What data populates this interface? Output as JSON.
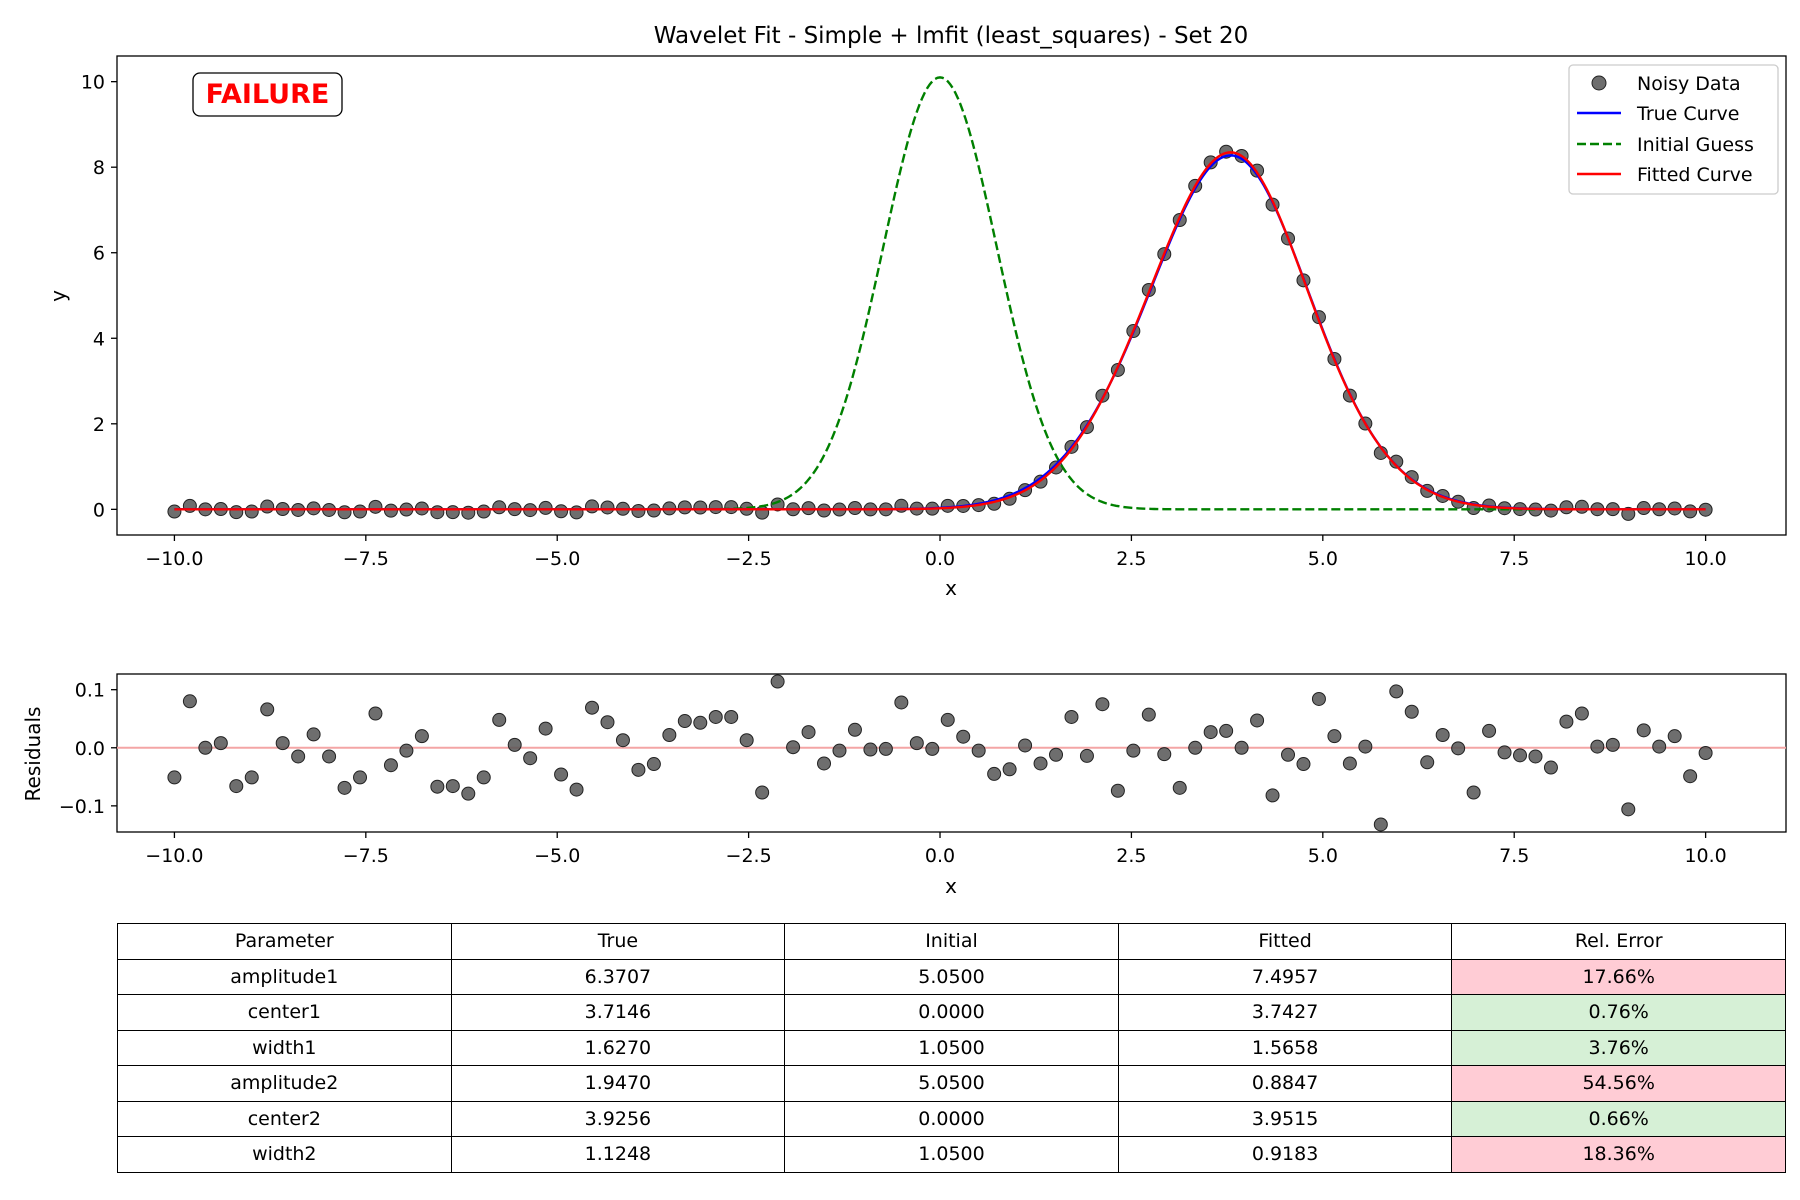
{
  "title": "Wavelet Fit - Simple + lmfit (least_squares) - Set 20",
  "status": {
    "text": "FAILURE",
    "color": "#ff0000"
  },
  "colors": {
    "noisy_data": "#555555",
    "true_curve": "#0000ff",
    "initial_guess": "#008000",
    "fitted_curve": "#ff0000",
    "residual_zero_line": "#f4a5a5",
    "error_bad": "#ffccd5",
    "error_good": "#d6f0d6"
  },
  "chart_data": [
    {
      "type": "line",
      "name": "main-fit",
      "xlabel": "x",
      "ylabel": "y",
      "xlim": [
        -10.75,
        11.05
      ],
      "ylim": [
        -0.6,
        10.6
      ],
      "xticks": [
        -10,
        -7.5,
        -5,
        -2.5,
        0,
        2.5,
        5,
        7.5,
        10
      ],
      "xtick_labels": [
        "−10.0",
        "−7.5",
        "−5.0",
        "−2.5",
        "0.0",
        "2.5",
        "5.0",
        "7.5",
        "10.0"
      ],
      "yticks": [
        0,
        2,
        4,
        6,
        8,
        10
      ],
      "ytick_labels": [
        "0",
        "2",
        "4",
        "6",
        "8",
        "10"
      ],
      "legend_position": "upper right",
      "legend": [
        "Noisy Data",
        "True Curve",
        "Initial Guess",
        "Fitted Curve"
      ],
      "true_model": {
        "function": "sum of two gaussians",
        "amplitude1": 6.3707,
        "center1": 3.7146,
        "width1": 1.627,
        "amplitude2": 1.947,
        "center2": 3.9256,
        "width2": 1.1248
      },
      "initial_model": {
        "function": "sum of two gaussians",
        "amplitude1": 5.05,
        "center1": 0.0,
        "width1": 1.05,
        "amplitude2": 5.05,
        "center2": 0.0,
        "width2": 1.05
      },
      "fitted_model": {
        "function": "sum of two gaussians",
        "amplitude1": 7.4957,
        "center1": 3.7427,
        "width1": 1.5658,
        "amplitude2": 0.8847,
        "center2": 3.9515,
        "width2": 0.9183
      },
      "data_x": {
        "start": -10,
        "stop": 10,
        "count": 100
      },
      "noisy_data_note": "noisy y = fitted curve value + residual at the same x"
    },
    {
      "type": "scatter",
      "name": "residuals",
      "xlabel": "x",
      "ylabel": "Residuals",
      "xlim": [
        -10.75,
        11.05
      ],
      "ylim": [
        -0.145,
        0.127
      ],
      "xticks": [
        -10,
        -7.5,
        -5,
        -2.5,
        0,
        2.5,
        5,
        7.5,
        10
      ],
      "xtick_labels": [
        "−10.0",
        "−7.5",
        "−5.0",
        "−2.5",
        "0.0",
        "2.5",
        "5.0",
        "7.5",
        "10.0"
      ],
      "yticks": [
        -0.1,
        0.0,
        0.1
      ],
      "ytick_labels": [
        "−0.1",
        "0.0",
        "0.1"
      ],
      "zero_line": 0,
      "residuals": [
        -0.051,
        0.08,
        0.0,
        0.008,
        -0.066,
        -0.051,
        0.066,
        0.008,
        -0.015,
        0.023,
        -0.015,
        -0.069,
        -0.051,
        0.059,
        -0.03,
        -0.005,
        0.02,
        -0.067,
        -0.066,
        -0.079,
        -0.051,
        0.048,
        0.005,
        -0.018,
        0.033,
        -0.046,
        -0.072,
        0.069,
        0.044,
        0.013,
        -0.038,
        -0.028,
        0.022,
        0.046,
        0.043,
        0.053,
        0.053,
        0.013,
        -0.077,
        0.114,
        0.001,
        0.027,
        -0.027,
        -0.005,
        0.031,
        -0.003,
        -0.002,
        0.078,
        0.008,
        -0.002,
        0.048,
        0.019,
        -0.005,
        -0.045,
        -0.037,
        0.004,
        -0.027,
        -0.012,
        0.053,
        -0.014,
        0.075,
        -0.074,
        -0.005,
        0.057,
        -0.011,
        -0.069,
        0.0,
        0.027,
        0.029,
        0.0,
        0.047,
        -0.082,
        -0.012,
        -0.028,
        0.084,
        0.02,
        -0.027,
        0.002,
        -0.132,
        0.097,
        0.062,
        -0.025,
        0.022,
        -0.001,
        -0.077,
        0.029,
        -0.008,
        -0.013,
        -0.015,
        -0.034,
        0.045,
        0.059,
        0.002,
        0.005,
        -0.106,
        0.03,
        0.002,
        0.02,
        -0.049,
        -0.009
      ]
    },
    {
      "type": "table",
      "name": "parameter-table",
      "columns": [
        "Parameter",
        "True",
        "Initial",
        "Fitted",
        "Rel. Error"
      ],
      "rows": [
        {
          "parameter": "amplitude1",
          "true": "6.3707",
          "initial": "5.0500",
          "fitted": "7.4957",
          "rel_error": "17.66%",
          "status": "bad"
        },
        {
          "parameter": "center1",
          "true": "3.7146",
          "initial": "0.0000",
          "fitted": "3.7427",
          "rel_error": "0.76%",
          "status": "good"
        },
        {
          "parameter": "width1",
          "true": "1.6270",
          "initial": "1.0500",
          "fitted": "1.5658",
          "rel_error": "3.76%",
          "status": "good"
        },
        {
          "parameter": "amplitude2",
          "true": "1.9470",
          "initial": "5.0500",
          "fitted": "0.8847",
          "rel_error": "54.56%",
          "status": "bad"
        },
        {
          "parameter": "center2",
          "true": "3.9256",
          "initial": "0.0000",
          "fitted": "3.9515",
          "rel_error": "0.66%",
          "status": "good"
        },
        {
          "parameter": "width2",
          "true": "1.1248",
          "initial": "1.0500",
          "fitted": "0.9183",
          "rel_error": "18.36%",
          "status": "bad"
        }
      ]
    }
  ]
}
